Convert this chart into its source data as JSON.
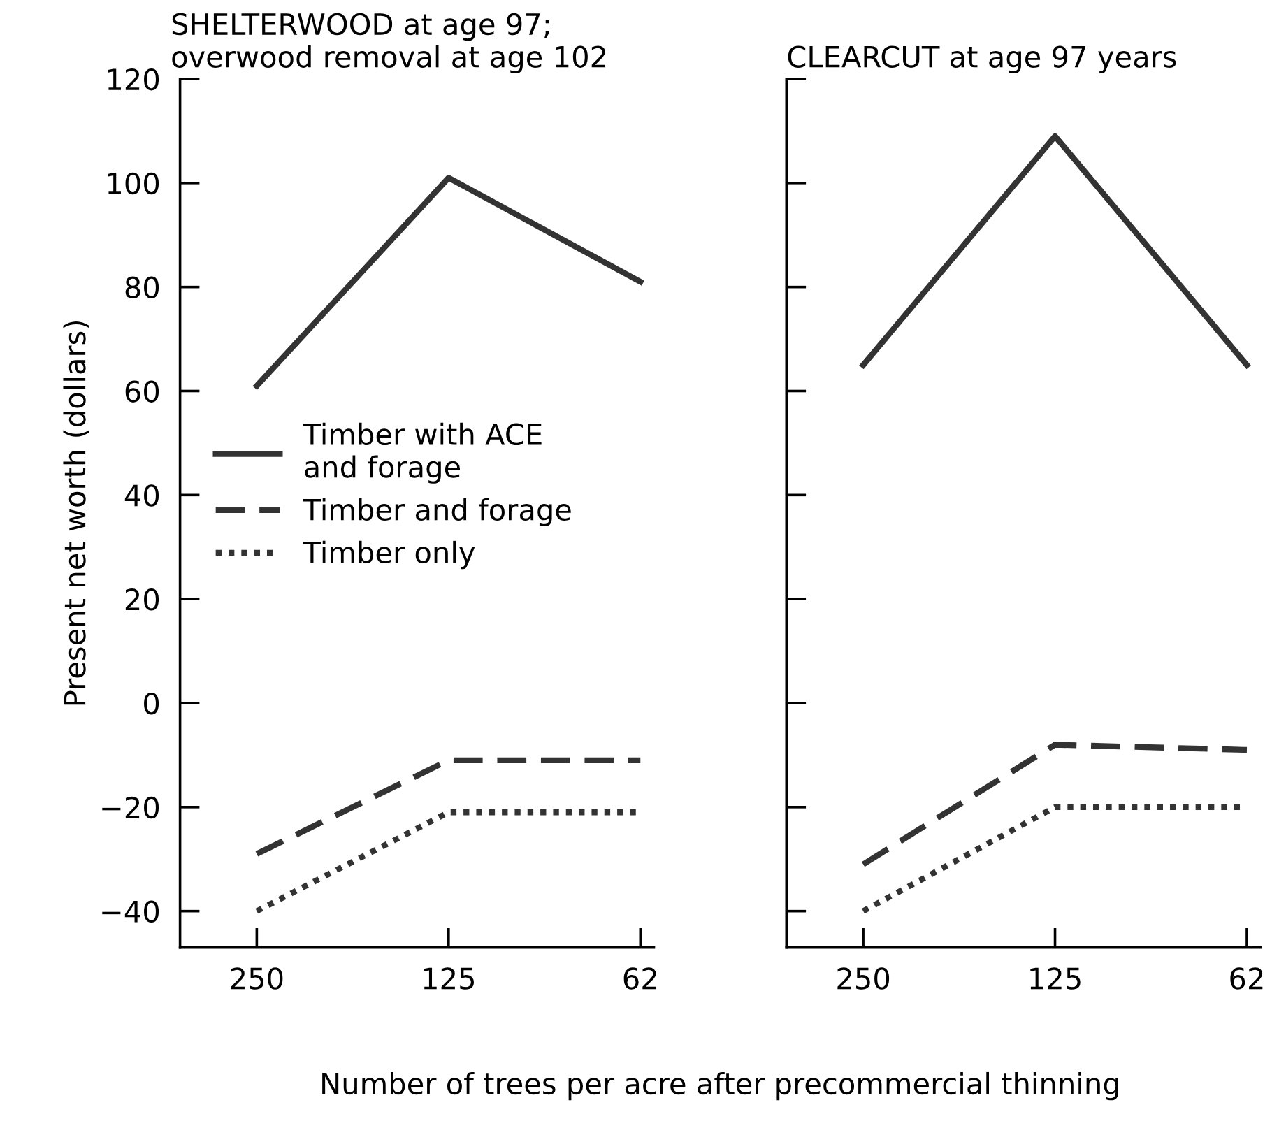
{
  "chart_data": [
    {
      "type": "line",
      "title": "SHELTERWOOD at age 97;\noverwood removal at age 102",
      "ylabel": "Present net worth (dollars)",
      "xlabel": "Number of trees per acre after precommercial thinning",
      "categories": [
        "250",
        "125",
        "62"
      ],
      "series": [
        {
          "name": "Timber with ACE\nand forage",
          "color": "#333333",
          "line_style": "solid",
          "values": [
            61,
            101,
            81
          ]
        },
        {
          "name": "Timber and forage",
          "color": "#333333",
          "line_style": "dashed",
          "values": [
            -29,
            -11,
            -11
          ]
        },
        {
          "name": "Timber only",
          "color": "#333333",
          "line_style": "dotted",
          "values": [
            -40,
            -21,
            -21
          ]
        }
      ],
      "ylim": [
        -47,
        120
      ],
      "yticks": [
        {
          "value": -40,
          "label": "−40"
        },
        {
          "value": -20,
          "label": "−20"
        },
        0,
        20,
        40,
        60,
        80,
        100,
        120
      ],
      "legend": "center left",
      "grid": false
    },
    {
      "type": "line",
      "title": "CLEARCUT at age 97 years",
      "categories": [
        "250",
        "125",
        "62"
      ],
      "series": [
        {
          "color": "#333333",
          "line_style": "solid",
          "values": [
            65,
            109,
            65
          ]
        },
        {
          "color": "#333333",
          "line_style": "dashed",
          "values": [
            -31,
            -8,
            -9
          ]
        },
        {
          "color": "#333333",
          "line_style": "dotted",
          "values": [
            -40,
            -20,
            -20
          ]
        }
      ],
      "ylim": [
        -47,
        120
      ],
      "yticks": [
        -40,
        -20,
        0,
        20,
        40,
        60,
        80,
        100,
        120
      ],
      "tick_labels": "x",
      "grid": false
    }
  ]
}
